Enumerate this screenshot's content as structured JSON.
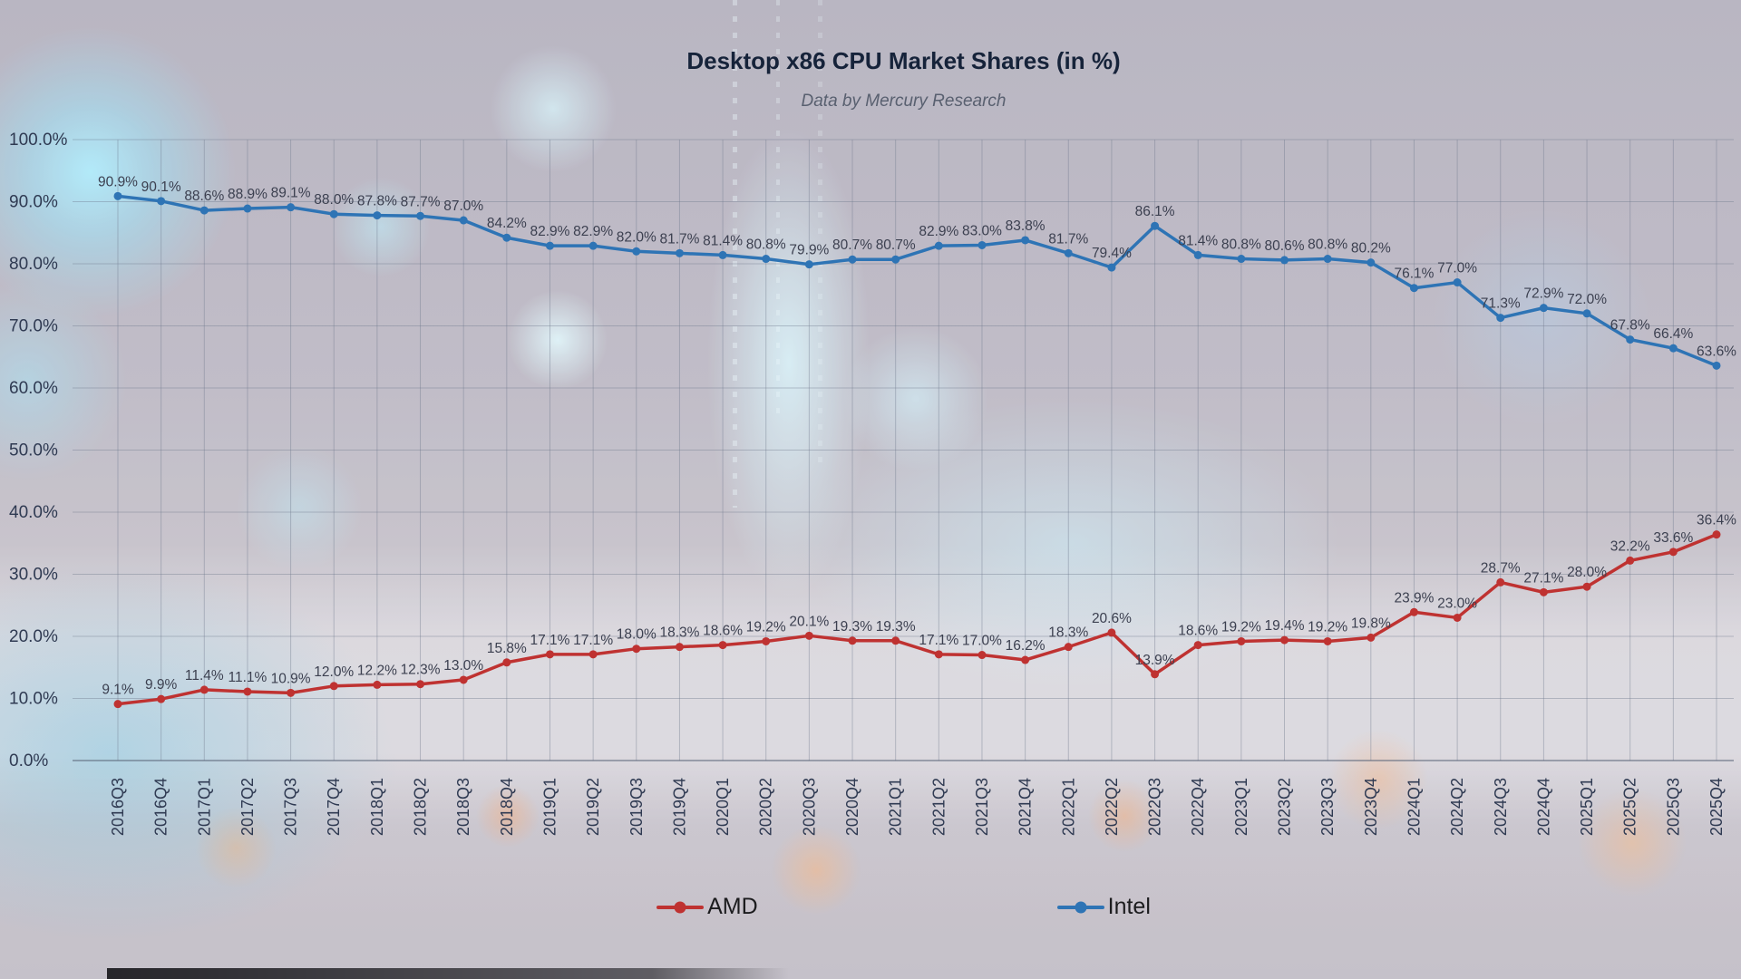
{
  "header": {
    "title": "Desktop x86 CPU Market Shares (in %)",
    "subtitle": "Data by Mercury Research"
  },
  "chart_data": {
    "type": "line",
    "title": "Desktop x86 CPU Market Shares (in %)",
    "subtitle": "Data by Mercury Research",
    "categories": [
      "2016Q3",
      "2016Q4",
      "2017Q1",
      "2017Q2",
      "2017Q3",
      "2017Q4",
      "2018Q1",
      "2018Q2",
      "2018Q3",
      "2018Q4",
      "2019Q1",
      "2019Q2",
      "2019Q3",
      "2019Q4",
      "2020Q1",
      "2020Q2",
      "2020Q3",
      "2020Q4",
      "2021Q1",
      "2021Q2",
      "2021Q3",
      "2021Q4",
      "2022Q1",
      "2022Q2",
      "2022Q3",
      "2022Q4",
      "2023Q1",
      "2023Q2",
      "2023Q3",
      "2023Q4",
      "2024Q1",
      "2024Q2",
      "2024Q3",
      "2024Q4",
      "2025Q1",
      "2025Q2",
      "2025Q3",
      "2025Q4"
    ],
    "series": [
      {
        "name": "AMD",
        "color": "#bf3231",
        "values": [
          9.1,
          9.9,
          11.4,
          11.1,
          10.9,
          12.0,
          12.2,
          12.3,
          13.0,
          15.8,
          17.1,
          17.1,
          18.0,
          18.3,
          18.6,
          19.2,
          20.1,
          19.3,
          19.3,
          17.1,
          17.0,
          16.2,
          18.3,
          20.6,
          13.9,
          18.6,
          19.2,
          19.4,
          19.2,
          19.8,
          23.9,
          23.0,
          28.7,
          27.1,
          28.0,
          32.2,
          33.6,
          36.4
        ]
      },
      {
        "name": "Intel",
        "color": "#2e74b5",
        "values": [
          90.9,
          90.1,
          88.6,
          88.9,
          89.1,
          88.0,
          87.8,
          87.7,
          87.0,
          84.2,
          82.9,
          82.9,
          82.0,
          81.7,
          81.4,
          80.8,
          79.9,
          80.7,
          80.7,
          82.9,
          83.0,
          83.8,
          81.7,
          79.4,
          86.1,
          81.4,
          80.8,
          80.6,
          80.8,
          80.2,
          76.1,
          77.0,
          71.3,
          72.9,
          72.0,
          67.8,
          66.4,
          63.6
        ]
      }
    ],
    "xlabel": "",
    "ylabel": "",
    "ylim": [
      0,
      100
    ],
    "ytick_step": 10,
    "yticks": [
      "0.0%",
      "10.0%",
      "20.0%",
      "30.0%",
      "40.0%",
      "50.0%",
      "60.0%",
      "70.0%",
      "80.0%",
      "90.0%",
      "100.0%"
    ],
    "grid": true,
    "legend_position": "bottom",
    "data_labels": true,
    "axis_color": "#2f3a52",
    "label_color": "#3c4050",
    "grid_color": "rgba(110,120,140,0.40)",
    "axis_line_color": "rgba(90,100,120,0.60)"
  }
}
